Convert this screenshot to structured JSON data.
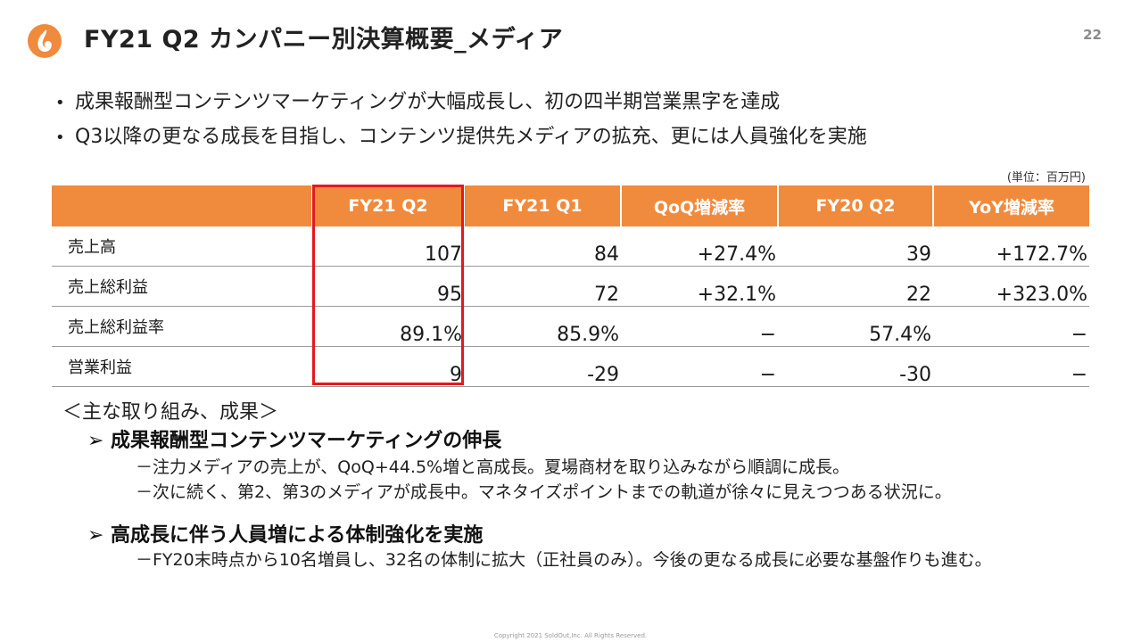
{
  "header": {
    "logo": "flame-logo-icon",
    "title": "FY21 Q2 カンパニー別決算概要_メディア",
    "page_number": "22"
  },
  "bullets": [
    "成果報酬型コンテンツマーケティングが大幅成長し、初の四半期営業黒字を達成",
    "Q3以降の更なる成長を目指し、コンテンツ提供先メディアの拡充、更には人員強化を実施"
  ],
  "table": {
    "unit": "(単位：百万円)",
    "header_color": "#f08a3c",
    "highlight_color": "#e5181e",
    "columns": [
      "",
      "FY21 Q2",
      "FY21 Q1",
      "QoQ増減率",
      "FY20 Q2",
      "YoY増減率"
    ],
    "rows": [
      {
        "label": "売上高",
        "cells": [
          "107",
          "84",
          "+27.4%",
          "39",
          "+172.7%"
        ]
      },
      {
        "label": "売上総利益",
        "cells": [
          "95",
          "72",
          "+32.1%",
          "22",
          "+323.0%"
        ]
      },
      {
        "label": "売上総利益率",
        "cells": [
          "89.1%",
          "85.9%",
          "−",
          "57.4%",
          "−"
        ]
      },
      {
        "label": "営業利益",
        "cells": [
          "9",
          "-29",
          "−",
          "-30",
          "−"
        ]
      }
    ]
  },
  "initiatives": {
    "heading": "＜主な取り組み、成果＞",
    "items": [
      {
        "title": "成果報酬型コンテンツマーケティングの伸長",
        "details": [
          "－注力メディアの売上が、QoQ+44.5%増と高成長。夏場商材を取り込みながら順調に成長。",
          "－次に続く、第2、第3のメディアが成長中。マネタイズポイントまでの軌道が徐々に見えつつある状況に。"
        ]
      },
      {
        "title": "高成長に伴う人員増による体制強化を実施",
        "details": [
          "－FY20末時点から10名増員し、32名の体制に拡大（正社員のみ）。今後の更なる成長に必要な基盤作りも進む。"
        ]
      }
    ]
  },
  "footer": {
    "copyright": "Copyright 2021 SoldOut,Inc. All Rights Reserved."
  }
}
